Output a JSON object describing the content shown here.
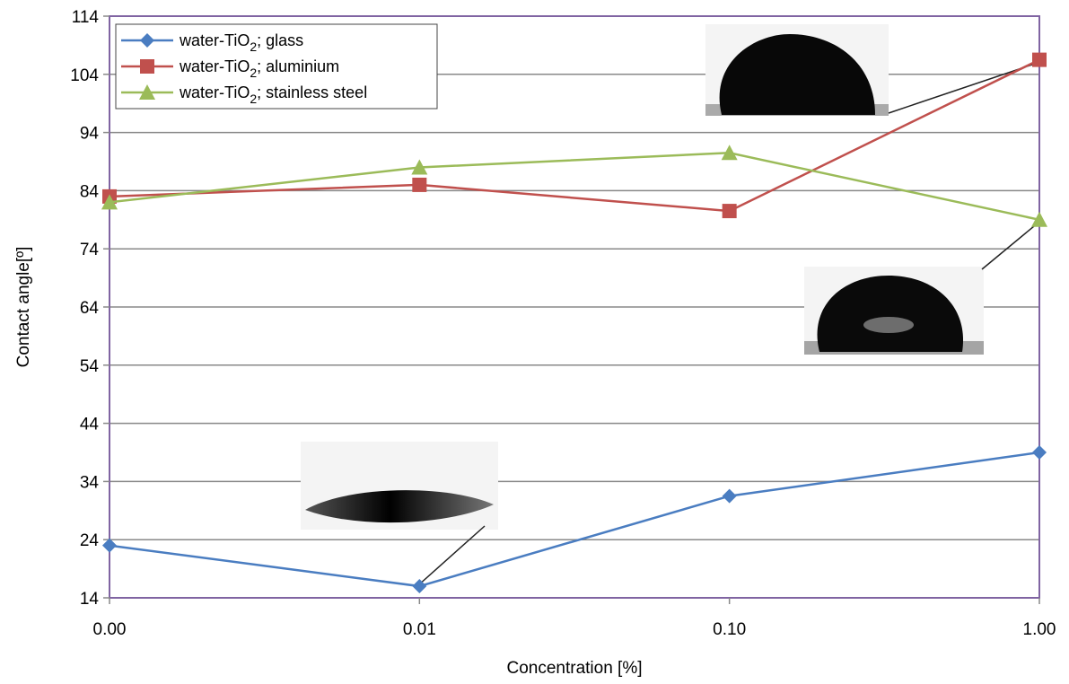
{
  "chart_data": {
    "type": "line",
    "title": "",
    "xlabel": "Concentration [%]",
    "ylabel": "Contact angle[º]",
    "categories": [
      "0.00",
      "0.01",
      "0.10",
      "1.00"
    ],
    "yticks": [
      14,
      24,
      34,
      44,
      54,
      64,
      74,
      84,
      94,
      104,
      114
    ],
    "ylim": [
      14,
      114
    ],
    "grid": "horizontal",
    "legend_position": "top-left",
    "series": [
      {
        "name": "water-TiO2; glass",
        "name_base": "water-TiO",
        "name_sub": "2",
        "name_rest": "; glass",
        "color": "#4a7dc1",
        "marker": "diamond",
        "values": [
          23,
          16,
          31.5,
          39
        ]
      },
      {
        "name": "water-TiO2; aluminium",
        "name_base": "water-TiO",
        "name_sub": "2",
        "name_rest": "; aluminium",
        "color": "#c0504d",
        "marker": "square",
        "values": [
          83,
          85,
          80.5,
          106.5
        ]
      },
      {
        "name": "water-TiO2; stainless steel",
        "name_base": "water-TiO",
        "name_sub": "2",
        "name_rest": "; stainless steel",
        "color": "#9bbb59",
        "marker": "triangle",
        "values": [
          82,
          88,
          90.5,
          79
        ]
      }
    ]
  },
  "colors": {
    "plot_border": "#8064a2",
    "gridline": "#888888",
    "axis": "#888888"
  }
}
